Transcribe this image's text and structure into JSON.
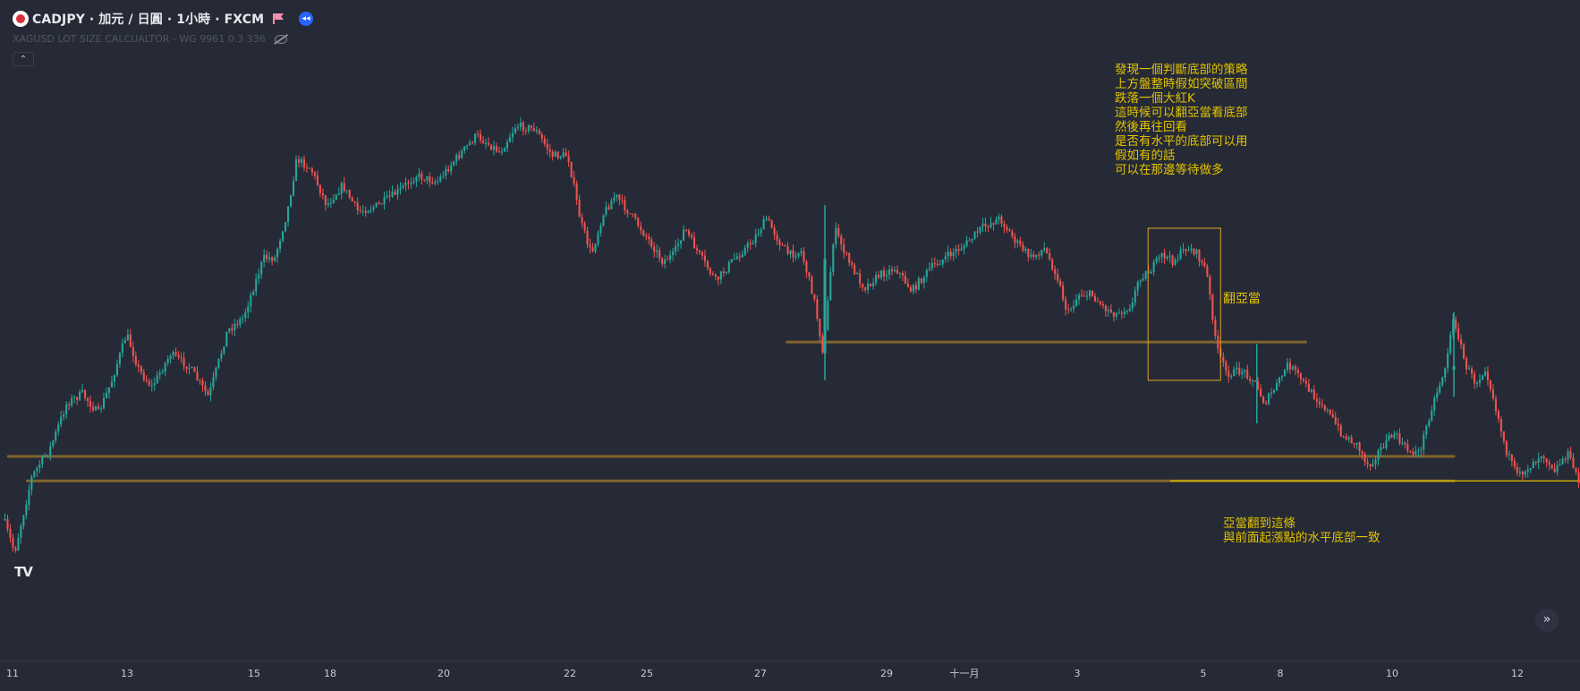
{
  "header": {
    "symbol_line": "CADJPY · 加元 / 日圓 · 1小時 · FXCM",
    "indicator": "XAGUSD LOT SIZE CALCUALTOR - WG 9961 0.3 336",
    "collapse_icon": "chevron-up-icon",
    "flag_icon": "flag-icon",
    "replay_icon": "replay-icon",
    "visibility_icon": "eye-off-icon",
    "brand_icon": "tradingview-logo",
    "scroll_icon": "double-chevron-right-icon"
  },
  "annotations": {
    "strategy_note": "發現一個判斷底部的策略\n上方盤整時假如突破區間\n跌落一個大紅K\n這時候可以翻亞當看底部\n然後再往回看\n是否有水平的底部可以用\n假如有的話\n可以在那邊等待做多",
    "box_label": "翻亞當",
    "level_note": "亞當翻到這條\n與前面起漲點的水平底部一致"
  },
  "colors": {
    "background": "#262a36",
    "up_candle": "#26a69a",
    "down_candle": "#ef5350",
    "drawn_level": "#8a6b2c",
    "annotation_text": "#e2c300",
    "box_border": "#e0a528",
    "axis_text": "#c9ccd4"
  },
  "chart_data": {
    "type": "candlestick",
    "symbol": "CADJPY",
    "timeframe": "1小時",
    "source": "FXCM",
    "x_tick_labels": [
      "11",
      "13",
      "15",
      "18",
      "20",
      "22",
      "25",
      "27",
      "29",
      "十一月",
      "3",
      "5",
      "8",
      "10",
      "12"
    ],
    "price_axis_visible": false,
    "path": [
      [
        0,
        0.785
      ],
      [
        0.007,
        0.835
      ],
      [
        0.018,
        0.72
      ],
      [
        0.03,
        0.675
      ],
      [
        0.04,
        0.61
      ],
      [
        0.05,
        0.595
      ],
      [
        0.06,
        0.625
      ],
      [
        0.068,
        0.58
      ],
      [
        0.078,
        0.505
      ],
      [
        0.086,
        0.56
      ],
      [
        0.094,
        0.585
      ],
      [
        0.106,
        0.535
      ],
      [
        0.118,
        0.555
      ],
      [
        0.13,
        0.6
      ],
      [
        0.142,
        0.5
      ],
      [
        0.152,
        0.48
      ],
      [
        0.165,
        0.39
      ],
      [
        0.172,
        0.39
      ],
      [
        0.18,
        0.32
      ],
      [
        0.186,
        0.24
      ],
      [
        0.195,
        0.255
      ],
      [
        0.205,
        0.31
      ],
      [
        0.215,
        0.28
      ],
      [
        0.225,
        0.32
      ],
      [
        0.238,
        0.31
      ],
      [
        0.25,
        0.29
      ],
      [
        0.262,
        0.265
      ],
      [
        0.275,
        0.275
      ],
      [
        0.285,
        0.245
      ],
      [
        0.3,
        0.205
      ],
      [
        0.315,
        0.23
      ],
      [
        0.325,
        0.19
      ],
      [
        0.337,
        0.195
      ],
      [
        0.348,
        0.235
      ],
      [
        0.358,
        0.235
      ],
      [
        0.366,
        0.335
      ],
      [
        0.373,
        0.385
      ],
      [
        0.38,
        0.325
      ],
      [
        0.388,
        0.295
      ],
      [
        0.398,
        0.325
      ],
      [
        0.41,
        0.365
      ],
      [
        0.418,
        0.395
      ],
      [
        0.425,
        0.385
      ],
      [
        0.432,
        0.345
      ],
      [
        0.44,
        0.38
      ],
      [
        0.452,
        0.425
      ],
      [
        0.462,
        0.395
      ],
      [
        0.475,
        0.365
      ],
      [
        0.484,
        0.33
      ],
      [
        0.492,
        0.365
      ],
      [
        0.498,
        0.385
      ],
      [
        0.506,
        0.38
      ],
      [
        0.514,
        0.45
      ],
      [
        0.52,
        0.535
      ],
      [
        0.527,
        0.345
      ],
      [
        0.536,
        0.395
      ],
      [
        0.546,
        0.435
      ],
      [
        0.556,
        0.415
      ],
      [
        0.566,
        0.405
      ],
      [
        0.576,
        0.44
      ],
      [
        0.588,
        0.405
      ],
      [
        0.6,
        0.385
      ],
      [
        0.61,
        0.37
      ],
      [
        0.62,
        0.345
      ],
      [
        0.632,
        0.33
      ],
      [
        0.642,
        0.365
      ],
      [
        0.652,
        0.39
      ],
      [
        0.66,
        0.375
      ],
      [
        0.668,
        0.415
      ],
      [
        0.675,
        0.475
      ],
      [
        0.682,
        0.445
      ],
      [
        0.69,
        0.445
      ],
      [
        0.698,
        0.465
      ],
      [
        0.706,
        0.475
      ],
      [
        0.716,
        0.46
      ],
      [
        0.72,
        0.42
      ],
      [
        0.727,
        0.41
      ],
      [
        0.735,
        0.385
      ],
      [
        0.742,
        0.395
      ],
      [
        0.75,
        0.375
      ],
      [
        0.756,
        0.38
      ],
      [
        0.763,
        0.41
      ],
      [
        0.77,
        0.53
      ],
      [
        0.776,
        0.565
      ],
      [
        0.786,
        0.56
      ],
      [
        0.793,
        0.575
      ],
      [
        0.8,
        0.61
      ],
      [
        0.807,
        0.585
      ],
      [
        0.815,
        0.55
      ],
      [
        0.822,
        0.57
      ],
      [
        0.83,
        0.595
      ],
      [
        0.838,
        0.615
      ],
      [
        0.85,
        0.66
      ],
      [
        0.858,
        0.67
      ],
      [
        0.866,
        0.705
      ],
      [
        0.873,
        0.68
      ],
      [
        0.882,
        0.655
      ],
      [
        0.89,
        0.68
      ],
      [
        0.898,
        0.685
      ],
      [
        0.906,
        0.615
      ],
      [
        0.914,
        0.56
      ],
      [
        0.92,
        0.48
      ],
      [
        0.927,
        0.55
      ],
      [
        0.934,
        0.58
      ],
      [
        0.94,
        0.555
      ],
      [
        0.947,
        0.62
      ],
      [
        0.953,
        0.68
      ],
      [
        0.96,
        0.72
      ],
      [
        0.968,
        0.705
      ],
      [
        0.976,
        0.685
      ],
      [
        0.984,
        0.71
      ],
      [
        0.992,
        0.685
      ],
      [
        1.0,
        0.73
      ]
    ],
    "spikes": [
      [
        0.521,
        0.31,
        0.575
      ],
      [
        0.795,
        0.52,
        0.64
      ],
      [
        0.92,
        0.472,
        0.6
      ]
    ],
    "horizontal_lines": [
      [
        0.497,
        0.826,
        0.517
      ],
      [
        0.003,
        0.92,
        0.69
      ],
      [
        0.015,
        0.92,
        0.727
      ]
    ],
    "highlight_line": [
      0.74,
      1.0,
      0.727
    ],
    "box": [
      0.726,
      0.772,
      0.345,
      0.575
    ]
  }
}
